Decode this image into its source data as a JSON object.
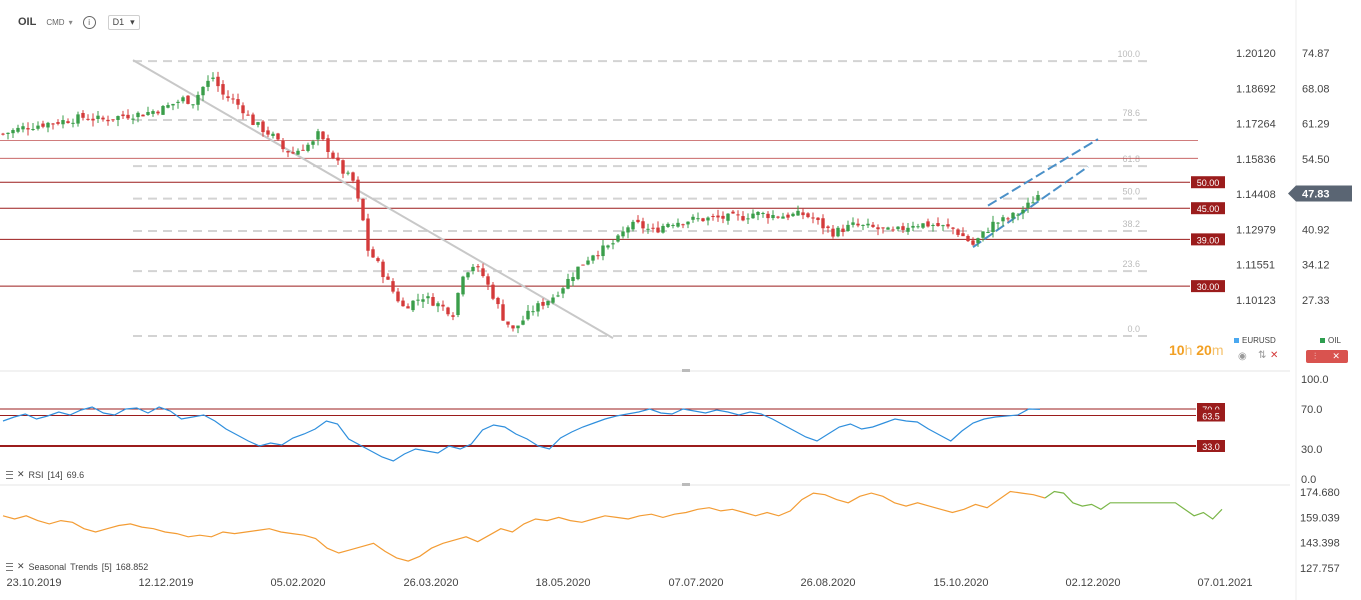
{
  "toolbar": {
    "symbol": "OIL",
    "market": "CMD",
    "timeframe": "D1",
    "caret": "▾",
    "info_glyph": "i"
  },
  "chart_data": [
    {
      "type": "candlestick",
      "name": "OIL",
      "last_price": "47.83",
      "last_price_color": "#5a6573",
      "up_color": "#3a9e4a",
      "down_color": "#d43a3a",
      "x_tick_labels": [
        "23.10.2019",
        "12.12.2019",
        "05.02.2020",
        "26.03.2020",
        "18.05.2020",
        "07.07.2020",
        "26.08.2020",
        "15.10.2020",
        "02.12.2020",
        "07.01.2021"
      ],
      "y_right_labels": [
        "74.87",
        "68.08",
        "61.29",
        "54.50",
        "40.92",
        "34.12",
        "27.33"
      ],
      "y_right_values": [
        74.87,
        68.08,
        61.29,
        54.5,
        40.92,
        34.12,
        27.33
      ],
      "eurusd_axis_labels": [
        "1.20120",
        "1.18692",
        "1.17264",
        "1.15836",
        "1.14408",
        "1.12979",
        "1.11551",
        "1.10123"
      ],
      "ylim": [
        18.5,
        79.5
      ],
      "approx_close_series": [
        [
          0,
          59.3
        ],
        [
          4,
          60.5
        ],
        [
          8,
          61.2
        ],
        [
          12,
          61.8
        ],
        [
          16,
          62.5
        ],
        [
          20,
          62.0
        ],
        [
          24,
          62.8
        ],
        [
          28,
          63.2
        ],
        [
          32,
          64.2
        ],
        [
          36,
          66.0
        ],
        [
          38,
          65.5
        ],
        [
          40,
          68.3
        ],
        [
          42,
          70.2
        ],
        [
          44,
          66.8
        ],
        [
          46,
          65.8
        ],
        [
          48,
          64.0
        ],
        [
          50,
          61.5
        ],
        [
          54,
          58.8
        ],
        [
          56,
          56.4
        ],
        [
          58,
          55.6
        ],
        [
          60,
          56.8
        ],
        [
          62,
          57.5
        ],
        [
          63,
          59.2
        ],
        [
          66,
          55.0
        ],
        [
          68,
          52.0
        ],
        [
          70,
          50.2
        ],
        [
          72,
          42.5
        ],
        [
          73,
          37.0
        ],
        [
          75,
          34.2
        ],
        [
          78,
          29.0
        ],
        [
          80,
          26.0
        ],
        [
          84,
          28.0
        ],
        [
          87,
          26.5
        ],
        [
          90,
          24.8
        ],
        [
          92,
          32.5
        ],
        [
          94,
          34.0
        ],
        [
          96,
          32.0
        ],
        [
          98,
          28.2
        ],
        [
          100,
          24.0
        ],
        [
          102,
          21.5
        ],
        [
          104,
          23.5
        ],
        [
          106,
          25.5
        ],
        [
          110,
          28.0
        ],
        [
          112,
          30.0
        ],
        [
          115,
          33.5
        ],
        [
          118,
          36.3
        ],
        [
          121,
          37.5
        ],
        [
          123,
          39.0
        ],
        [
          125,
          41.5
        ],
        [
          127,
          41.8
        ],
        [
          130,
          40.5
        ],
        [
          133,
          42.2
        ],
        [
          138,
          42.8
        ],
        [
          143,
          43.1
        ],
        [
          148,
          43.3
        ],
        [
          150,
          44.0
        ],
        [
          155,
          43.5
        ],
        [
          160,
          43.8
        ],
        [
          162,
          43.0
        ],
        [
          164,
          41.5
        ],
        [
          166,
          40.3
        ],
        [
          170,
          41.7
        ],
        [
          174,
          41.2
        ],
        [
          178,
          40.3
        ],
        [
          182,
          42.0
        ],
        [
          186,
          41.8
        ],
        [
          190,
          41.0
        ],
        [
          192,
          39.6
        ],
        [
          194,
          38.0
        ],
        [
          196,
          40.0
        ],
        [
          198,
          42.0
        ],
        [
          201,
          43.0
        ],
        [
          203,
          44.0
        ],
        [
          205,
          45.5
        ],
        [
          207,
          47.6
        ]
      ]
    },
    {
      "type": "horizontal_levels",
      "levels": [
        {
          "label": "50.00",
          "value": 50.0
        },
        {
          "label": "45.00",
          "value": 45.0
        },
        {
          "label": "39.00",
          "value": 39.0
        },
        {
          "label": "30.00",
          "value": 30.0
        }
      ],
      "unlabeled_lines": [
        58.0,
        54.6
      ],
      "level_color": "#9b1c1c"
    },
    {
      "type": "fibonacci",
      "labels": [
        "100.0",
        "78.6",
        "61.8",
        "50.0",
        "38.2",
        "23.6",
        "0.0"
      ],
      "ratios": [
        1.0,
        0.786,
        0.618,
        0.5,
        0.382,
        0.236,
        0.0
      ]
    },
    {
      "type": "line",
      "name": "RSI",
      "label": "RSI",
      "period": "[14]",
      "value": "69.6",
      "color": "#2f8fdd",
      "y_tick_labels": [
        "100.0",
        "70.0",
        "30.0",
        "0.0"
      ],
      "ylim": [
        0,
        100
      ],
      "levels": [
        {
          "label": "70.0",
          "value": 70.0
        },
        {
          "label": "63.5",
          "value": 63.5
        },
        {
          "label": "33.0",
          "value": 33.0
        }
      ],
      "values": [
        58,
        62,
        65,
        60,
        63,
        67,
        64,
        69,
        72,
        66,
        64,
        70,
        71,
        66,
        72,
        68,
        60,
        62,
        64,
        58,
        50,
        44,
        38,
        33,
        36,
        34,
        41,
        45,
        50,
        58,
        55,
        40,
        34,
        28,
        22,
        18,
        25,
        30,
        28,
        26,
        33,
        30,
        35,
        49,
        54,
        52,
        45,
        40,
        33,
        30,
        41,
        47,
        52,
        56,
        60,
        63,
        65,
        67,
        70,
        66,
        65,
        70,
        68,
        66,
        69,
        67,
        64,
        67,
        65,
        60,
        54,
        48,
        42,
        38,
        45,
        52,
        55,
        50,
        52,
        56,
        60,
        58,
        57,
        50,
        44,
        38,
        48,
        56,
        60,
        62,
        63,
        64,
        70,
        69.6
      ]
    },
    {
      "type": "line",
      "name": "Seasonal Trends",
      "label": "Seasonal",
      "label2": "Trends",
      "period": "[5]",
      "value": "168.852",
      "color": "#f39c34",
      "forecast_color": "#7ab648",
      "y_tick_labels": [
        "174.680",
        "159.039",
        "143.398",
        "127.757"
      ],
      "ylim": [
        126.5,
        176.5
      ],
      "values": [
        160,
        158,
        160,
        157,
        155,
        157,
        156,
        152,
        150,
        152,
        154,
        155,
        153,
        152,
        150,
        149,
        147,
        148,
        147,
        150,
        149,
        150,
        151,
        152,
        150,
        149,
        148,
        146,
        140,
        137,
        139,
        141,
        143,
        138,
        134,
        132,
        135,
        140,
        143,
        145,
        147,
        144,
        148,
        152,
        150,
        155,
        158,
        157,
        159,
        157,
        156,
        158,
        160,
        159,
        158,
        160,
        161,
        159,
        161,
        162,
        164,
        165,
        163,
        164,
        162,
        160,
        162,
        160,
        163,
        170,
        174,
        173,
        170,
        168,
        172,
        174,
        172,
        168,
        166,
        168,
        166,
        164,
        162,
        164,
        167,
        165,
        170,
        175,
        174,
        173,
        171
      ],
      "forecast": [
        171,
        175,
        174,
        168,
        166,
        167,
        164,
        168,
        168,
        168,
        168,
        168,
        168,
        168,
        168,
        164,
        160,
        162,
        158,
        164
      ]
    }
  ],
  "legend": {
    "eurusd": {
      "label": "EURUSD",
      "color": "#4aa8f0"
    },
    "oil": {
      "label": "OIL",
      "color": "#2e9e4f"
    }
  },
  "timer": {
    "hours": "10",
    "h_unit": "h",
    "minutes": "20",
    "m_unit": "m"
  },
  "controls": {
    "close": "✕",
    "settings": "⚙"
  },
  "colors": {
    "grid_dashed": "#d3d3d3",
    "trendline": "#c8c8c8",
    "channel": "#4a90c8"
  }
}
